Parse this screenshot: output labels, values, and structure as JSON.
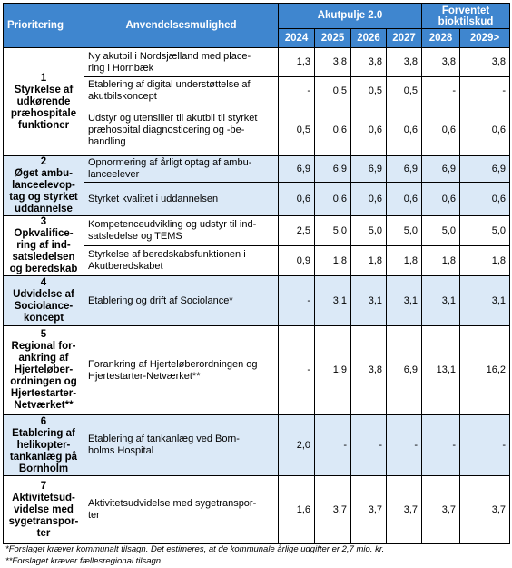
{
  "table": {
    "header": {
      "priority": "Prioritering",
      "use": "Anvendelsesmulighed",
      "pool": "Akutpulje 2.0",
      "expected": [
        "Forventet",
        "bioktilskud"
      ],
      "years": [
        "2024",
        "2025",
        "2026",
        "2027",
        "2028",
        "2029>"
      ]
    },
    "groups": [
      {
        "number": "1",
        "title": [
          "Styrkelse af",
          "udkørende",
          "præhospitale",
          "funktioner"
        ],
        "shade": false,
        "items": [
          {
            "text": [
              "Ny akutbil i Nordsjælland med place-",
              "ring i Hornbæk"
            ],
            "values": [
              "1,3",
              "3,8",
              "3,8",
              "3,8",
              "3,8",
              "3,8"
            ]
          },
          {
            "text": [
              "Etablering af digital understøttelse af",
              "akutbilskoncept"
            ],
            "values": [
              "-",
              "0,5",
              "0,5",
              "0,5",
              "-",
              "-"
            ]
          },
          {
            "text": [
              "Udstyr og utensilier til akutbil til styrket",
              "præhospital diagnosticering og -be-",
              "handling"
            ],
            "values": [
              "0,5",
              "0,6",
              "0,6",
              "0,6",
              "0,6",
              "0,6"
            ]
          }
        ]
      },
      {
        "number": "2",
        "title": [
          "Øget ambu-",
          "lanceelevop-",
          "tag og styrket",
          "uddannelse"
        ],
        "shade": true,
        "items": [
          {
            "text": [
              "Opnormering af årligt optag af ambu-",
              "lanceelever"
            ],
            "values": [
              "6,9",
              "6,9",
              "6,9",
              "6,9",
              "6,9",
              "6,9"
            ]
          },
          {
            "text": [
              "Styrket kvalitet i uddannelsen"
            ],
            "values": [
              "0,6",
              "0,6",
              "0,6",
              "0,6",
              "0,6",
              "0,6"
            ]
          }
        ]
      },
      {
        "number": "3",
        "title": [
          "Opkvalifice-",
          "ring af ind-",
          "satsledelsen",
          "og beredskab"
        ],
        "shade": false,
        "items": [
          {
            "text": [
              "Kompetenceudvikling og udstyr til ind-",
              "satsledelse og TEMS"
            ],
            "values": [
              "2,5",
              "5,0",
              "5,0",
              "5,0",
              "5,0",
              "5,0"
            ]
          },
          {
            "text": [
              "Styrkelse af beredskabsfunktionen i",
              "Akutberedskabet"
            ],
            "values": [
              "0,9",
              "1,8",
              "1,8",
              "1,8",
              "1,8",
              "1,8"
            ]
          }
        ]
      },
      {
        "number": "4",
        "title": [
          "Udvidelse af",
          "Sociolance-",
          "koncept"
        ],
        "shade": true,
        "items": [
          {
            "text": [
              "Etablering og drift af Sociolance*"
            ],
            "values": [
              "-",
              "3,1",
              "3,1",
              "3,1",
              "3,1",
              "3,1"
            ]
          }
        ]
      },
      {
        "number": "5",
        "title": [
          "Regional for-",
          "ankring af",
          "Hjerteløber-",
          "ordningen og",
          "Hjertestarter-",
          "Netværket**"
        ],
        "shade": false,
        "items": [
          {
            "text": [
              "Forankring af Hjerteløberordningen og",
              "Hjertestarter-Netværket**"
            ],
            "values": [
              "-",
              "1,9",
              "3,8",
              "6,9",
              "13,1",
              "16,2"
            ]
          }
        ]
      },
      {
        "number": "6",
        "title": [
          "Etablering af",
          "helikopter-",
          "tankanlæg på",
          "Bornholm"
        ],
        "shade": true,
        "items": [
          {
            "text": [
              "Etablering af tankanlæg ved Born-",
              "holms Hospital"
            ],
            "values": [
              "2,0",
              "-",
              "-",
              "-",
              "-",
              "-"
            ]
          }
        ]
      },
      {
        "number": "7",
        "title": [
          "Aktivitetsud-",
          "videlse med",
          "sygetranspor-",
          "ter"
        ],
        "shade": false,
        "items": [
          {
            "text": [
              "Aktivitetsudvidelse med sygetranspor-",
              "ter"
            ],
            "values": [
              "1,6",
              "3,7",
              "3,7",
              "3,7",
              "3,7",
              "3,7"
            ]
          }
        ]
      }
    ]
  },
  "footnotes": [
    "*Forslaget kræver kommunalt tilsagn. Det estimeres, at de kommunale årlige udgifter er 2,7 mio. kr.",
    "**Forslaget kræver fællesregional tilsagn"
  ]
}
